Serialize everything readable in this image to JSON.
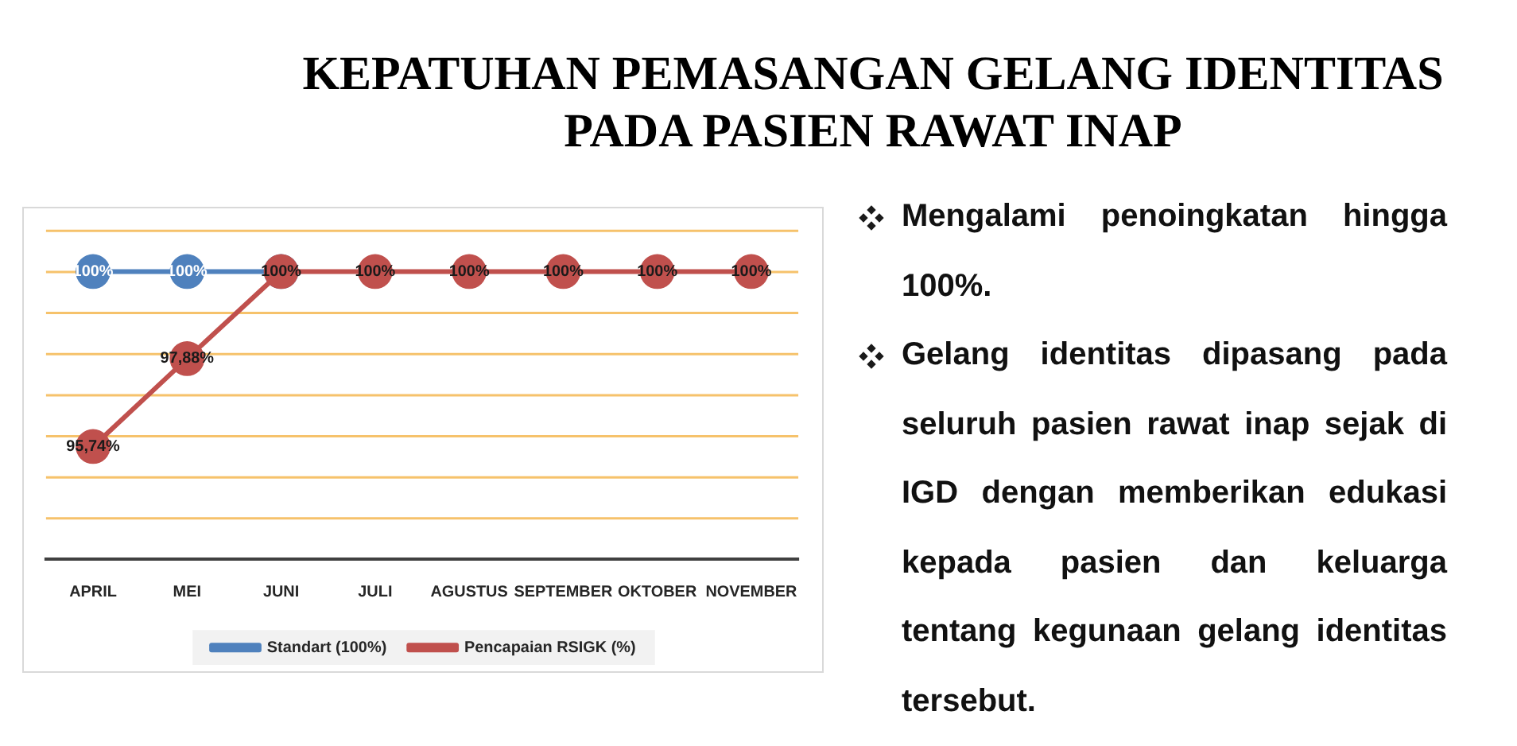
{
  "chart_data": {
    "type": "line",
    "title": "KEPATUHAN PEMASANGAN GELANG IDENTITAS PADA PASIEN RAWAT INAP",
    "categories": [
      "APRIL",
      "MEI",
      "JUNI",
      "JULI",
      "AGUSTUS",
      "SEPTEMBER",
      "OKTOBER",
      "NOVEMBER"
    ],
    "series": [
      {
        "name": "Standart (100%)",
        "color": "#4f81bd",
        "values": [
          100,
          100,
          100,
          null,
          null,
          null,
          null,
          null
        ],
        "value_labels": [
          "100%",
          "100%",
          null,
          null,
          null,
          null,
          null,
          null
        ]
      },
      {
        "name": "Pencapaian RSIGK (%)",
        "color": "#c0504d",
        "values": [
          95.74,
          97.88,
          100,
          100,
          100,
          100,
          100,
          100
        ],
        "value_labels": [
          "95,74%",
          "97,88%",
          "100%",
          "100%",
          "100%",
          "100%",
          "100%",
          "100%"
        ]
      }
    ],
    "ylim": [
      93,
      101
    ],
    "yticks": [
      {
        "value": 93,
        "label": null
      },
      {
        "value": 94,
        "label": null
      },
      {
        "value": 95,
        "label": null
      },
      {
        "value": 96,
        "label": null
      },
      {
        "value": 97,
        "label": null
      },
      {
        "value": 98,
        "label": null
      },
      {
        "value": 99,
        "label": null
      },
      {
        "value": 100,
        "label": null
      },
      {
        "value": 101,
        "label": null
      }
    ],
    "tick_labels": "x",
    "grid": "y",
    "legend": "bottom",
    "marker": "circle",
    "line_style": "solid",
    "annotations": [
      "Mengalami penoingkatan hingga 100%.",
      "Gelang identitas dipasang pada seluruh pasien rawat inap sejak di IGD dengan memberikan edukasi kepada pasien dan keluarga tentang kegunaan gelang identitas tersebut."
    ]
  }
}
